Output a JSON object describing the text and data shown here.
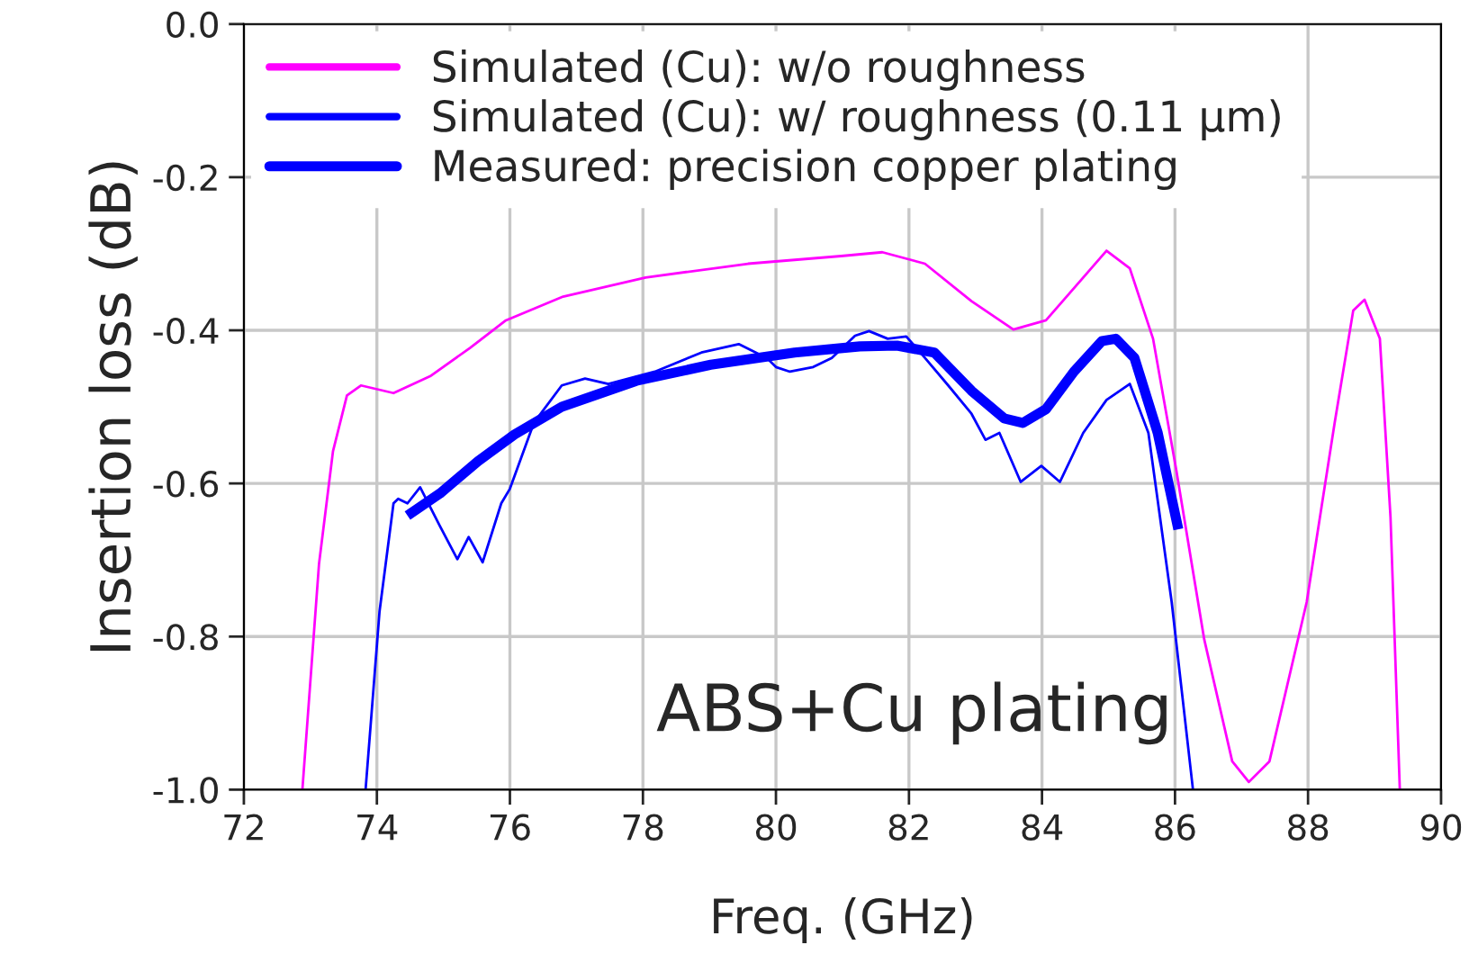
{
  "chart_data": {
    "type": "line",
    "xlabel": "Freq. (GHz)",
    "ylabel": "Insertion loss (dB)",
    "annotations": [
      "ABS+Cu plating"
    ],
    "xlim": [
      72,
      90
    ],
    "xticks": [
      72,
      74,
      76,
      78,
      80,
      82,
      84,
      86,
      88,
      90
    ],
    "ylim": [
      -1.0,
      0.0
    ],
    "yticks": [
      {
        "value": -1.0,
        "label": "-1.0"
      },
      {
        "value": -0.8,
        "label": "-0.8"
      },
      {
        "value": -0.6,
        "label": "-0.6"
      },
      {
        "value": -0.4,
        "label": "-0.4"
      },
      {
        "value": -0.2,
        "label": "-0.2"
      },
      {
        "value": 0.0,
        "label": "0.0"
      }
    ],
    "grid": true,
    "legend": "top left",
    "series": [
      {
        "name": "Simulated (Cu): w/o roughness",
        "color": "#ff00ff",
        "line_style": "solid",
        "x": [
          72.88,
          73.13,
          73.34,
          73.55,
          73.76,
          74.25,
          74.8,
          75.4,
          75.94,
          76.8,
          78.04,
          79.58,
          80.98,
          81.6,
          82.24,
          82.94,
          83.57,
          84.06,
          84.62,
          84.97,
          85.32,
          85.67,
          86.02,
          86.44,
          86.86,
          87.11,
          87.42,
          87.98,
          88.4,
          88.68,
          88.85,
          89.08,
          89.24,
          89.38
        ],
        "values": [
          -1.0,
          -0.705,
          -0.558,
          -0.485,
          -0.472,
          -0.482,
          -0.46,
          -0.423,
          -0.387,
          -0.356,
          -0.331,
          -0.313,
          -0.303,
          -0.298,
          -0.313,
          -0.362,
          -0.399,
          -0.387,
          -0.331,
          -0.296,
          -0.319,
          -0.411,
          -0.583,
          -0.804,
          -0.963,
          -0.99,
          -0.963,
          -0.755,
          -0.521,
          -0.374,
          -0.36,
          -0.411,
          -0.644,
          -1.0
        ]
      },
      {
        "name": "Simulated (Cu): w/ roughness (0.11 μm)",
        "color": "#0000ff",
        "line_style": "solid",
        "x": [
          73.83,
          74.04,
          74.25,
          74.32,
          74.46,
          74.65,
          74.95,
          75.21,
          75.38,
          75.59,
          75.87,
          76.0,
          76.36,
          76.78,
          77.13,
          77.48,
          78.18,
          78.88,
          79.44,
          79.86,
          80.0,
          80.21,
          80.56,
          80.84,
          81.19,
          81.4,
          81.68,
          81.96,
          82.24,
          82.59,
          82.94,
          83.15,
          83.36,
          83.68,
          83.99,
          84.27,
          84.62,
          84.97,
          85.32,
          85.6,
          85.95,
          86.27
        ],
        "values": [
          -1.0,
          -0.767,
          -0.626,
          -0.62,
          -0.626,
          -0.605,
          -0.656,
          -0.699,
          -0.67,
          -0.703,
          -0.626,
          -0.607,
          -0.521,
          -0.472,
          -0.463,
          -0.47,
          -0.454,
          -0.429,
          -0.418,
          -0.436,
          -0.448,
          -0.454,
          -0.448,
          -0.436,
          -0.407,
          -0.401,
          -0.411,
          -0.408,
          -0.436,
          -0.472,
          -0.509,
          -0.543,
          -0.534,
          -0.598,
          -0.577,
          -0.598,
          -0.534,
          -0.491,
          -0.47,
          -0.534,
          -0.755,
          -1.0
        ]
      },
      {
        "name": "Measured: precision copper plating",
        "color": "#0000ff",
        "line_style": "solid",
        "x": [
          74.46,
          74.95,
          75.52,
          76.07,
          76.78,
          77.9,
          79.02,
          80.28,
          81.26,
          81.82,
          82.38,
          82.94,
          83.43,
          83.71,
          84.06,
          84.48,
          84.9,
          85.11,
          85.39,
          85.74,
          86.05
        ],
        "values": [
          -0.642,
          -0.613,
          -0.571,
          -0.536,
          -0.5,
          -0.466,
          -0.445,
          -0.429,
          -0.421,
          -0.42,
          -0.429,
          -0.479,
          -0.515,
          -0.521,
          -0.503,
          -0.454,
          -0.414,
          -0.411,
          -0.436,
          -0.534,
          -0.66
        ]
      }
    ]
  }
}
